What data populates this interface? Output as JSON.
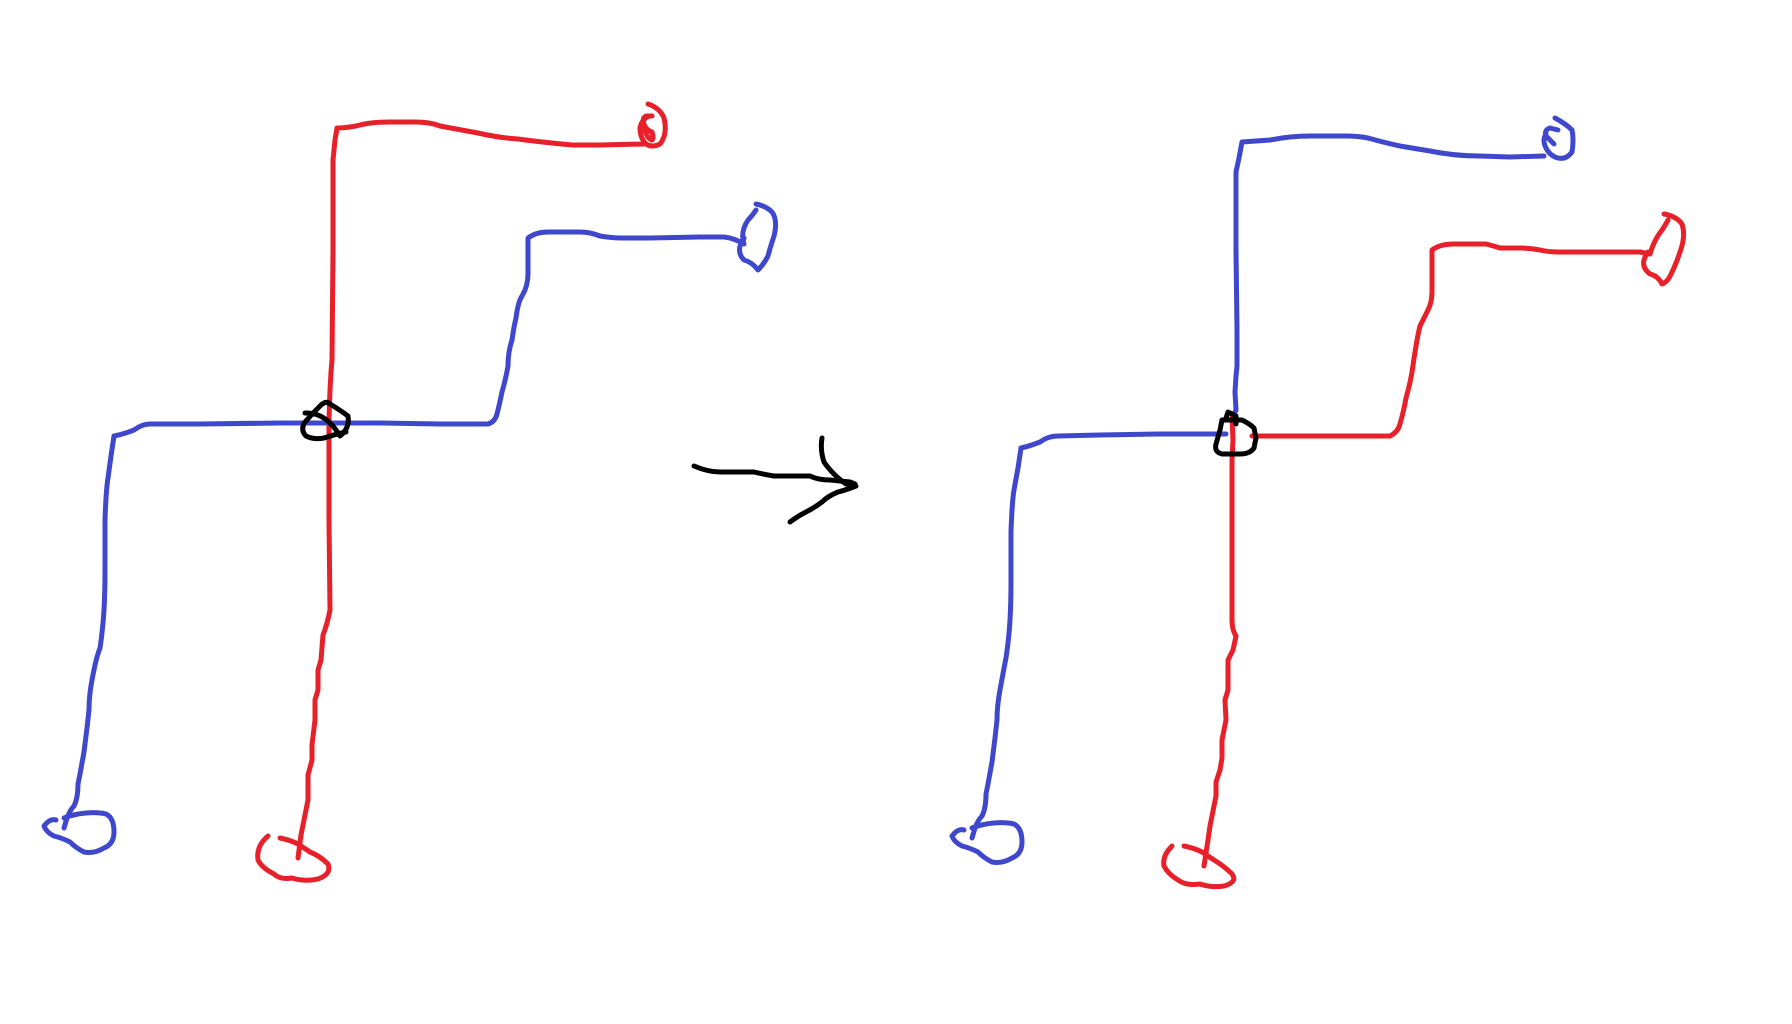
{
  "diagram": {
    "background": "#ffffff",
    "colors": {
      "red_wire": "#e8202a",
      "blue_wire": "#3f48cc",
      "junction": "#000000",
      "arrow": "#000000"
    },
    "panels": [
      {
        "id": "before",
        "horizontal_wire_right_segment_color": "blue",
        "vertical_wire_top_color": "red",
        "junction_marker": "circle"
      },
      {
        "id": "after",
        "horizontal_wire_right_segment_color": "red",
        "vertical_wire_top_color": "blue",
        "junction_marker": "square"
      }
    ],
    "arrow_direction": "right"
  }
}
